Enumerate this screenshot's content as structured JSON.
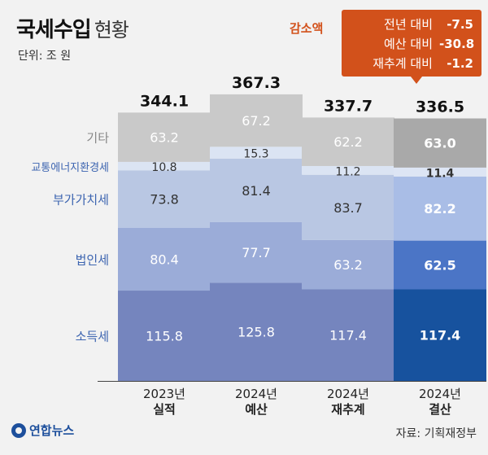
{
  "title": {
    "main": "국세수입",
    "sub": "현황"
  },
  "unit": "단위: 조 원",
  "decrease": {
    "label": "감소액",
    "rows": [
      {
        "label": "전년 대비",
        "value": "-7.5"
      },
      {
        "label": "예산 대비",
        "value": "-30.8"
      },
      {
        "label": "재추계 대비",
        "value": "-1.2"
      }
    ]
  },
  "source": "자료: 기획재정부",
  "logo": "연합뉴스",
  "colors": {
    "기타": "#c9c9c9",
    "교통에너지환경세": "#dbe4f3",
    "부가가치세": "#b9c7e3",
    "법인세": "#9bacd8",
    "소득세": "#7585be",
    "highlight_기타": "#a9a9a9",
    "highlight_교통에너지환경세": "#dde5f4",
    "highlight_부가가치세": "#a9bde6",
    "highlight_법인세": "#4b75c6",
    "highlight_소득세": "#17529e",
    "category_label": "#3c64b0",
    "other_label": "#888888"
  },
  "chart_data": {
    "type": "bar",
    "stacked": true,
    "categories": [
      "2023년|실적",
      "2024년|예산",
      "2024년|재추계",
      "2024년|결산"
    ],
    "series": [
      {
        "name": "소득세",
        "values": [
          115.8,
          125.8,
          117.4,
          117.4
        ]
      },
      {
        "name": "법인세",
        "values": [
          80.4,
          77.7,
          63.2,
          62.5
        ]
      },
      {
        "name": "부가가치세",
        "values": [
          73.8,
          81.4,
          83.7,
          82.2
        ]
      },
      {
        "name": "교통에너지환경세",
        "values": [
          10.8,
          15.3,
          11.2,
          11.4
        ]
      },
      {
        "name": "기타",
        "values": [
          63.2,
          67.2,
          62.2,
          63.0
        ]
      }
    ],
    "totals": [
      344.1,
      367.3,
      337.7,
      336.5
    ],
    "highlight_index": 3,
    "ylim": [
      0,
      367.3
    ],
    "grid": false,
    "legend": "left"
  }
}
